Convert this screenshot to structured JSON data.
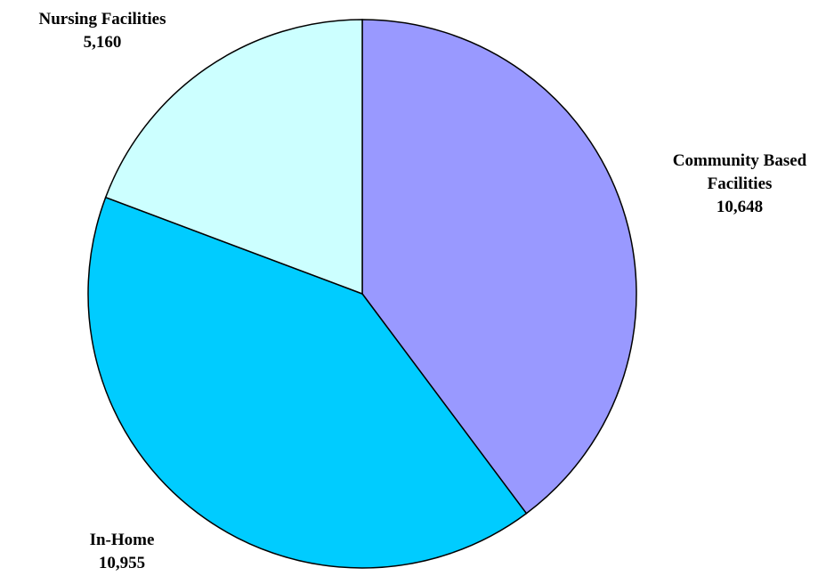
{
  "chart_data": {
    "type": "pie",
    "title": "",
    "categories": [
      "Community Based Facilities",
      "In-Home",
      "Nursing Facilities"
    ],
    "values": [
      10648,
      10955,
      5160
    ],
    "series": [
      {
        "values": [
          10648,
          10955,
          5160
        ]
      }
    ],
    "slices": [
      {
        "label_lines": [
          "Community Based",
          "Facilities"
        ],
        "value_text": "10,648",
        "value": 10648,
        "color": "#9999ff"
      },
      {
        "label_lines": [
          "In-Home"
        ],
        "value_text": "10,955",
        "value": 10955,
        "color": "#00ccff"
      },
      {
        "label_lines": [
          "Nursing Facilities"
        ],
        "value_text": "5,160",
        "value": 5160,
        "color": "#ccffff"
      }
    ],
    "start_angle_deg": 0,
    "direction": "clockwise",
    "legend": "none"
  }
}
